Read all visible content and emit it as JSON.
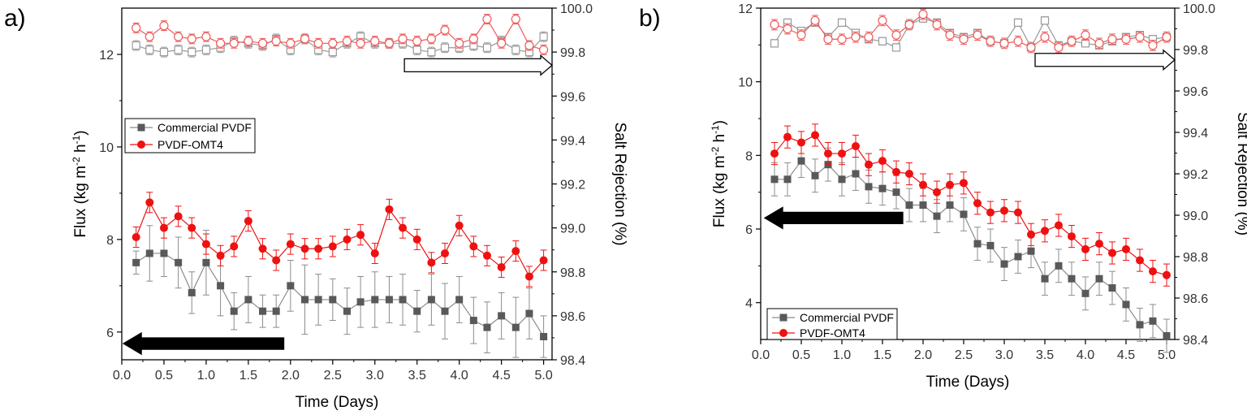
{
  "chart_data": [
    {
      "panel": "a)",
      "type": "line",
      "xlabel": "Time (Days)",
      "ylabel_left": "Flux (kg m",
      "ylabel_left_sup1": "-2",
      "ylabel_left_mid": " h",
      "ylabel_left_sup2": "-1",
      "ylabel_left_end": ")",
      "ylabel_right": "Salt Rejection (%)",
      "xlim": [
        0.0,
        5.1
      ],
      "ylim_left": [
        5.4,
        13.0
      ],
      "ylim_right": [
        98.4,
        100.0
      ],
      "xticks": [
        "0.0",
        "0.5",
        "1.0",
        "1.5",
        "2.0",
        "2.5",
        "3.0",
        "3.5",
        "4.0",
        "4.5",
        "5.0"
      ],
      "yticks_left": [
        "6",
        "8",
        "10",
        "12"
      ],
      "yticks_right": [
        "98.4",
        "98.6",
        "98.8",
        "99.0",
        "99.2",
        "99.4",
        "99.6",
        "99.8",
        "100.0"
      ],
      "legend": [
        {
          "name": "Commercial PVDF",
          "color": "#595959",
          "marker": "square"
        },
        {
          "name": "PVDF-OMT4",
          "color": "#ee1111",
          "marker": "circle"
        }
      ],
      "x": [
        0.17,
        0.33,
        0.5,
        0.67,
        0.83,
        1.0,
        1.17,
        1.33,
        1.5,
        1.67,
        1.83,
        2.0,
        2.17,
        2.33,
        2.5,
        2.67,
        2.83,
        3.0,
        3.17,
        3.33,
        3.5,
        3.67,
        3.83,
        4.0,
        4.17,
        4.33,
        4.5,
        4.67,
        4.83,
        5.0
      ],
      "flux_series": [
        {
          "name": "Commercial PVDF",
          "axis": "left",
          "values": [
            7.5,
            7.7,
            7.7,
            7.5,
            6.85,
            7.5,
            7.0,
            6.45,
            6.7,
            6.45,
            6.45,
            7.0,
            6.7,
            6.7,
            6.7,
            6.45,
            6.65,
            6.7,
            6.7,
            6.7,
            6.45,
            6.7,
            6.45,
            6.7,
            6.25,
            6.1,
            6.35,
            6.1,
            6.4,
            5.9
          ],
          "errors": [
            0.25,
            0.6,
            0.5,
            0.55,
            0.45,
            0.7,
            0.65,
            0.4,
            0.5,
            0.35,
            0.35,
            0.55,
            0.75,
            0.55,
            0.45,
            0.5,
            0.55,
            0.6,
            0.5,
            0.55,
            0.45,
            0.55,
            0.6,
            0.5,
            0.5,
            0.55,
            0.5,
            0.65,
            0.55,
            0.45
          ]
        },
        {
          "name": "PVDF-OMT4",
          "axis": "left",
          "values": [
            8.05,
            8.8,
            8.25,
            8.5,
            8.25,
            7.9,
            7.65,
            7.85,
            8.4,
            7.8,
            7.55,
            7.9,
            7.8,
            7.8,
            7.85,
            8.0,
            8.1,
            7.7,
            8.65,
            8.25,
            8.0,
            7.5,
            7.7,
            8.3,
            7.85,
            7.65,
            7.4,
            7.75,
            7.2,
            7.55
          ]
        },
        {
          "name": "Commercial PVDF rejection",
          "axis": "right",
          "values": [
            99.83,
            99.81,
            99.8,
            99.81,
            99.8,
            99.81,
            99.82,
            99.85,
            99.84,
            99.83,
            99.86,
            99.81,
            99.86,
            99.81,
            99.8,
            99.84,
            99.87,
            99.84,
            99.84,
            99.84,
            99.81,
            99.8,
            99.82,
            99.82,
            99.83,
            99.82,
            99.85,
            99.81,
            99.8,
            99.87
          ]
        },
        {
          "name": "PVDF-OMT4 rejection",
          "axis": "right",
          "values": [
            99.91,
            99.87,
            99.92,
            99.87,
            99.86,
            99.87,
            99.84,
            99.84,
            99.85,
            99.84,
            99.85,
            99.84,
            99.86,
            99.84,
            99.84,
            99.85,
            99.84,
            99.85,
            99.84,
            99.86,
            99.85,
            99.86,
            99.9,
            99.84,
            99.86,
            99.95,
            99.84,
            99.95,
            99.83,
            99.81
          ]
        }
      ],
      "arrows": [
        {
          "direction": "left",
          "style": "filled",
          "axis": "left",
          "from_x": 1.92,
          "to_x": 0.02,
          "y": 5.75
        },
        {
          "direction": "right",
          "style": "hollow",
          "axis": "right",
          "from_x": 3.35,
          "to_x": 5.1,
          "y": 99.74
        }
      ]
    },
    {
      "panel": "b)",
      "type": "line",
      "xlabel": "Time (Days)",
      "ylabel_left": "Flux (kg m",
      "ylabel_left_sup1": "-2",
      "ylabel_left_mid": " h",
      "ylabel_left_sup2": "-1",
      "ylabel_left_end": ")",
      "ylabel_right": "Salt Rejection (%)",
      "xlim": [
        0.0,
        5.1
      ],
      "ylim_left": [
        3.0,
        12.0
      ],
      "ylim_right": [
        98.4,
        100.0
      ],
      "xticks": [
        "0.0",
        "0.5",
        "1.0",
        "1.5",
        "2.0",
        "2.5",
        "3.0",
        "3.5",
        "4.0",
        "4.5",
        "5.0"
      ],
      "yticks_left": [
        "4",
        "6",
        "8",
        "10",
        "12"
      ],
      "yticks_right": [
        "98.4",
        "98.6",
        "98.8",
        "99.0",
        "99.2",
        "99.4",
        "99.6",
        "99.8",
        "100.0"
      ],
      "legend": [
        {
          "name": "Commercial PVDF",
          "color": "#595959",
          "marker": "square"
        },
        {
          "name": "PVDF-OMT4",
          "color": "#ee1111",
          "marker": "circle"
        }
      ],
      "x": [
        0.17,
        0.33,
        0.5,
        0.67,
        0.83,
        1.0,
        1.17,
        1.33,
        1.5,
        1.67,
        1.83,
        2.0,
        2.17,
        2.33,
        2.5,
        2.67,
        2.83,
        3.0,
        3.17,
        3.33,
        3.5,
        3.67,
        3.83,
        4.0,
        4.17,
        4.33,
        4.5,
        4.67,
        4.83,
        5.0
      ],
      "flux_series": [
        {
          "name": "Commercial PVDF",
          "axis": "left",
          "values": [
            7.35,
            7.35,
            7.85,
            7.45,
            7.75,
            7.35,
            7.5,
            7.15,
            7.1,
            7.0,
            6.65,
            6.65,
            6.35,
            6.65,
            6.4,
            5.6,
            5.55,
            5.05,
            5.25,
            5.4,
            4.65,
            5.0,
            4.65,
            4.25,
            4.65,
            4.4,
            3.95,
            3.4,
            3.5,
            3.1
          ]
        },
        {
          "name": "PVDF-OMT4",
          "axis": "left",
          "values": [
            8.05,
            8.5,
            8.35,
            8.55,
            8.05,
            8.05,
            8.25,
            7.75,
            7.85,
            7.55,
            7.5,
            7.2,
            7.0,
            7.2,
            7.25,
            6.7,
            6.45,
            6.5,
            6.45,
            5.85,
            5.95,
            6.1,
            5.8,
            5.45,
            5.6,
            5.35,
            5.45,
            5.15,
            4.85,
            4.75
          ]
        },
        {
          "name": "Commercial PVDF rejection",
          "axis": "right",
          "values": [
            99.83,
            99.93,
            99.89,
            99.93,
            99.86,
            99.93,
            99.88,
            99.85,
            99.84,
            99.81,
            99.92,
            99.95,
            99.93,
            99.88,
            99.86,
            99.88,
            99.84,
            99.83,
            99.93,
            99.81,
            99.94,
            99.82,
            99.84,
            99.83,
            99.82,
            99.84,
            99.86,
            99.87,
            99.85,
            99.86
          ]
        },
        {
          "name": "PVDF-OMT4 rejection",
          "axis": "right",
          "values": [
            99.92,
            99.9,
            99.87,
            99.94,
            99.85,
            99.85,
            99.86,
            99.86,
            99.94,
            99.87,
            99.92,
            99.97,
            99.92,
            99.87,
            99.85,
            99.87,
            99.84,
            99.83,
            99.84,
            99.81,
            99.86,
            99.81,
            99.84,
            99.87,
            99.83,
            99.85,
            99.85,
            99.86,
            99.82,
            99.86
          ]
        }
      ],
      "arrows": [
        {
          "direction": "left",
          "style": "filled",
          "axis": "left",
          "from_x": 1.75,
          "to_x": 0.05,
          "y": 6.3
        },
        {
          "direction": "right",
          "style": "hollow",
          "axis": "right",
          "from_x": 3.38,
          "to_x": 5.1,
          "y": 99.75
        }
      ]
    }
  ]
}
